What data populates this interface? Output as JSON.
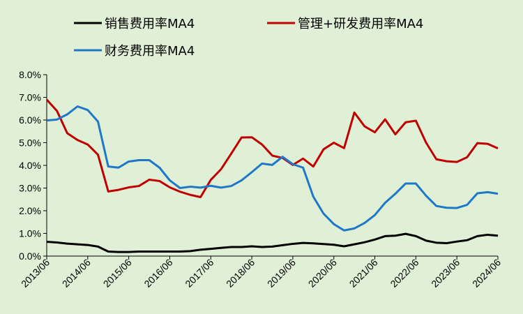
{
  "chart_data": {
    "type": "line",
    "title": "",
    "xlabel": "",
    "ylabel": "",
    "ylim": [
      0,
      8
    ],
    "y_ticks": [
      "0.0%",
      "1.0%",
      "2.0%",
      "3.0%",
      "4.0%",
      "5.0%",
      "6.0%",
      "7.0%",
      "8.0%"
    ],
    "x_ticks": [
      "2013/06",
      "2014/06",
      "2015/06",
      "2016/06",
      "2017/06",
      "2018/06",
      "2019/06",
      "2020/06",
      "2021/06",
      "2022/06",
      "2023/06",
      "2024/06"
    ],
    "grid": false,
    "legend_position": "top",
    "series": [
      {
        "name": "销售费用率MA4",
        "color": "#000000",
        "values": [
          0.63,
          0.6,
          0.55,
          0.52,
          0.49,
          0.42,
          0.2,
          0.18,
          0.18,
          0.2,
          0.2,
          0.2,
          0.2,
          0.2,
          0.22,
          0.28,
          0.32,
          0.36,
          0.4,
          0.4,
          0.43,
          0.4,
          0.42,
          0.48,
          0.54,
          0.58,
          0.56,
          0.53,
          0.5,
          0.43,
          0.52,
          0.61,
          0.73,
          0.88,
          0.9,
          0.98,
          0.88,
          0.68,
          0.59,
          0.57,
          0.64,
          0.7,
          0.88,
          0.94,
          0.9
        ]
      },
      {
        "name": "管理+研发费用率MA4",
        "color": "#c00000",
        "values": [
          6.9,
          6.4,
          5.42,
          5.12,
          4.92,
          4.47,
          2.85,
          2.92,
          3.03,
          3.09,
          3.37,
          3.31,
          3.03,
          2.84,
          2.7,
          2.6,
          3.36,
          3.83,
          4.52,
          5.23,
          5.24,
          4.92,
          4.43,
          4.33,
          4.02,
          4.3,
          3.95,
          4.71,
          5.0,
          4.76,
          6.33,
          5.72,
          5.46,
          6.03,
          5.37,
          5.9,
          5.97,
          5.0,
          4.27,
          4.18,
          4.15,
          4.36,
          4.98,
          4.95,
          4.75
        ]
      },
      {
        "name": "财务费用率MA4",
        "color": "#1f77c8",
        "values": [
          5.98,
          6.02,
          6.25,
          6.6,
          6.44,
          5.93,
          3.95,
          3.9,
          4.17,
          4.23,
          4.23,
          3.9,
          3.34,
          3.0,
          3.06,
          3.02,
          3.1,
          3.02,
          3.09,
          3.34,
          3.7,
          4.08,
          4.02,
          4.38,
          4.05,
          3.9,
          2.62,
          1.87,
          1.41,
          1.13,
          1.22,
          1.46,
          1.81,
          2.35,
          2.75,
          3.2,
          3.2,
          2.66,
          2.21,
          2.13,
          2.12,
          2.26,
          2.77,
          2.82,
          2.75
        ]
      }
    ]
  }
}
